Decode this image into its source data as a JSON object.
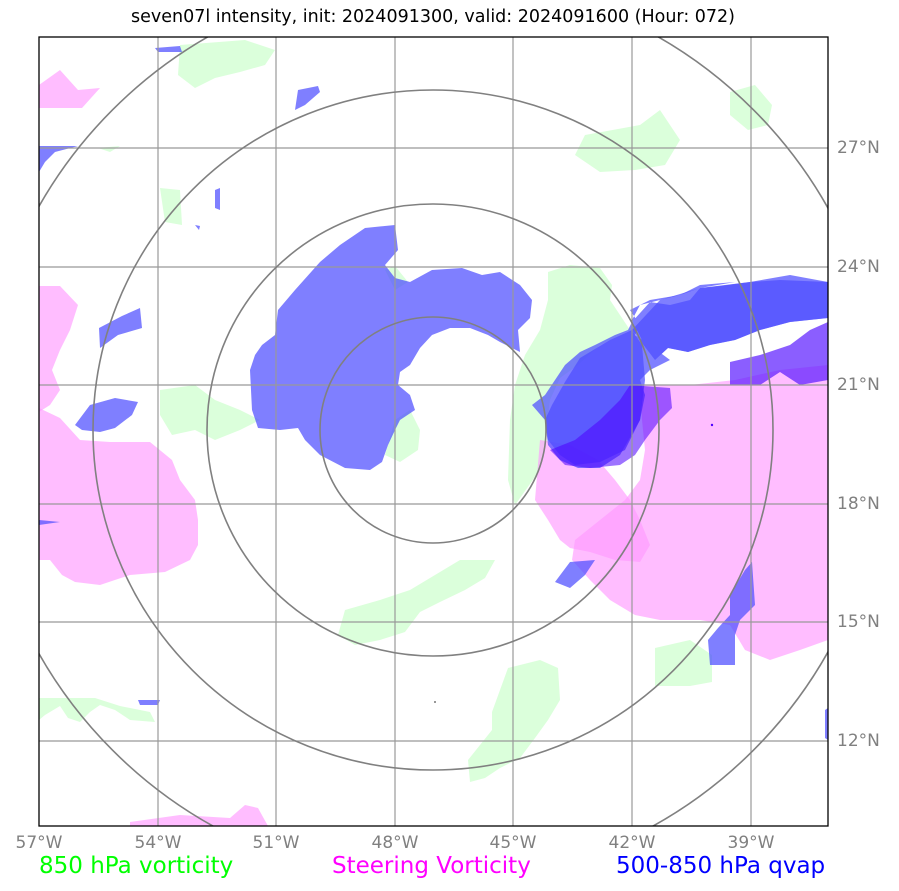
{
  "title": "seven07l intensity, init: 2024091300, valid: 2024091600 (Hour: 072)",
  "map": {
    "lon_labels": [
      "57°W",
      "54°W",
      "51°W",
      "48°W",
      "45°W",
      "42°W",
      "39°W"
    ],
    "lat_labels": [
      "27°N",
      "24°N",
      "21°N",
      "18°N",
      "15°N",
      "12°N"
    ],
    "center": {
      "lat": 19.8,
      "lon": -47.1
    },
    "range_rings_deg": [
      2.8,
      5.6,
      8.5,
      11.2
    ],
    "extent": {
      "lon_min": -57,
      "lon_max": -37,
      "lat_min": 10,
      "lat_max": 29.8
    }
  },
  "legend": {
    "vorticity_850": {
      "label": "850 hPa vorticity",
      "color": "#00ff00"
    },
    "steering": {
      "label": "Steering Vorticity",
      "color": "#ff00ff"
    },
    "qvap": {
      "label": "500-850 hPa qvap",
      "color": "#0000ff"
    }
  },
  "layers": {
    "green_850_vorticity": "#ccffcc",
    "pink_steering": "#ff99ff",
    "blue_qvap": "#4d4dff"
  }
}
